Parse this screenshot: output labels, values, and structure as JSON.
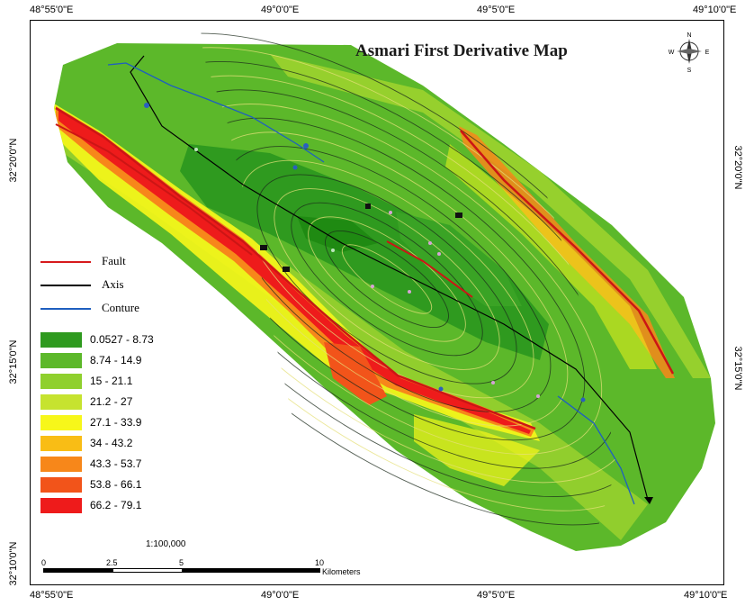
{
  "map": {
    "title": "Asmari First Derivative Map",
    "scale": "1:100,000",
    "scale_bar": {
      "ticks": [
        "0",
        "2.5",
        "5",
        "10"
      ],
      "unit": "Kilometers"
    },
    "north_arrow": {
      "icon": "compass-rose-icon",
      "letters": {
        "n": "N",
        "s": "S",
        "e": "E",
        "w": "W"
      }
    },
    "coords": {
      "top": [
        "48°55'0\"E",
        "49°0'0\"E",
        "49°5'0\"E",
        "49°10'0\"E"
      ],
      "bottom": [
        "48°55'0\"E",
        "49°0'0\"E",
        "49°5'0\"E",
        "49°10'0\"E"
      ],
      "left": [
        "32°20'0\"N",
        "32°15'0\"N",
        "32°10'0\"N"
      ],
      "right": [
        "32°20'0\"N",
        "32°15'0\"N"
      ]
    },
    "line_legend": [
      {
        "label": "Fault",
        "color": "#d7191c"
      },
      {
        "label": "Axis",
        "color": "#000000"
      },
      {
        "label": "Conture",
        "color": "#1f5fbf"
      }
    ],
    "classes": [
      {
        "label": "0.0527 - 8.73",
        "color": "#2f9a1f"
      },
      {
        "label": "8.74 - 14.9",
        "color": "#5cb82a"
      },
      {
        "label": "15 - 21.1",
        "color": "#8fd02e"
      },
      {
        "label": "21.2 - 27",
        "color": "#c6e32f"
      },
      {
        "label": "27.1 - 33.9",
        "color": "#f7f71a"
      },
      {
        "label": "34 - 43.2",
        "color": "#f9bd15"
      },
      {
        "label": "43.3 - 53.7",
        "color": "#f7871a"
      },
      {
        "label": "53.8 - 66.1",
        "color": "#f2541a"
      },
      {
        "label": "66.2 - 79.1",
        "color": "#ee1b1b"
      }
    ]
  }
}
